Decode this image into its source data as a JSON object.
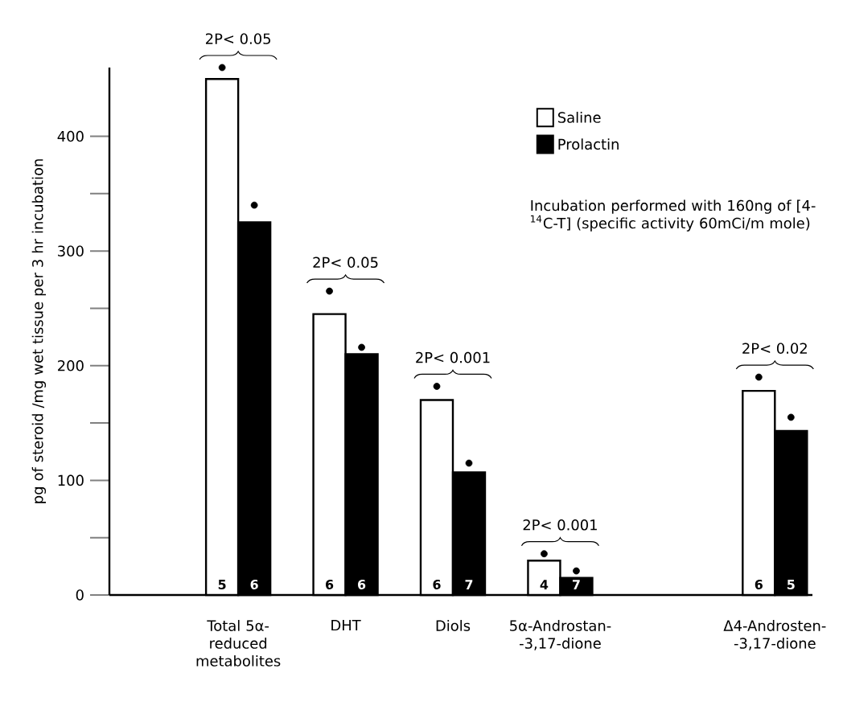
{
  "chart_data": {
    "type": "bar",
    "categories": [
      "Total 5α-reduced metabolites",
      "DHT",
      "Diols",
      "5α-Androstan- -3,17-dione",
      null,
      "Δ4-Androsten- -3,17-dione"
    ],
    "series": [
      {
        "name": "Saline",
        "color": "#ffffff",
        "values": [
          450,
          245,
          170,
          30,
          null,
          178
        ]
      },
      {
        "name": "Prolactin",
        "color": "#000000",
        "values": [
          325,
          210,
          107,
          15,
          null,
          143
        ]
      },
      {
        "type": "scatter",
        "color": "#000000",
        "x": [
          "Total 5α-reduced metabolites",
          "DHT",
          "Diols",
          "5α-Androstan- -3,17-dione",
          "Δ4-Androsten- -3,17-dione"
        ],
        "values": [
          460,
          265,
          182,
          36,
          190
        ]
      },
      {
        "type": "scatter",
        "color": "#000000",
        "x": [
          "Total 5α-reduced metabolites",
          "DHT",
          "Diols",
          "5α-Androstan- -3,17-dione",
          "Δ4-Androsten- -3,17-dione"
        ],
        "values": [
          340,
          216,
          115,
          21,
          155
        ]
      }
    ],
    "ylabel": "pg of steroid /mg wet tissue per 3 hr incubation",
    "ylim": [
      0,
      460
    ],
    "yticks": [
      0,
      {
        "value": 50,
        "label": null
      },
      100,
      {
        "value": 150,
        "label": null
      },
      200,
      {
        "value": 250,
        "label": null
      },
      300,
      {
        "value": 350,
        "label": null
      },
      400
    ],
    "legend": "top right",
    "annotations": [
      "Incubation performed with 160ng of [4-$^{14}$C-T] (specific activity 60mCi/m mole)",
      "2P< 0.05",
      "2P< 0.05",
      "2P< 0.001",
      "2P< 0.001",
      "2P< 0.02",
      {
        "text": "5",
        "x": "Total 5α-reduced metabolites",
        "y": 0
      },
      {
        "text": "6",
        "x": "Total 5α-reduced metabolites",
        "y": 0
      },
      {
        "text": "6",
        "x": "DHT",
        "y": 0
      },
      {
        "text": "6",
        "x": "DHT",
        "y": 0
      },
      {
        "text": "6",
        "x": "Diols",
        "y": 0
      },
      {
        "text": "7",
        "x": "Diols",
        "y": 0
      },
      {
        "text": "4",
        "x": "5α-Androstan- -3,17-dione",
        "y": 0
      },
      {
        "text": "7",
        "x": "5α-Androstan- -3,17-dione",
        "y": 0
      },
      {
        "text": "6",
        "x": "Δ4-Androsten- -3,17-dione",
        "y": 0
      },
      {
        "text": "5",
        "x": "Δ4-Androsten- -3,17-dione",
        "y": 0
      }
    ]
  }
}
